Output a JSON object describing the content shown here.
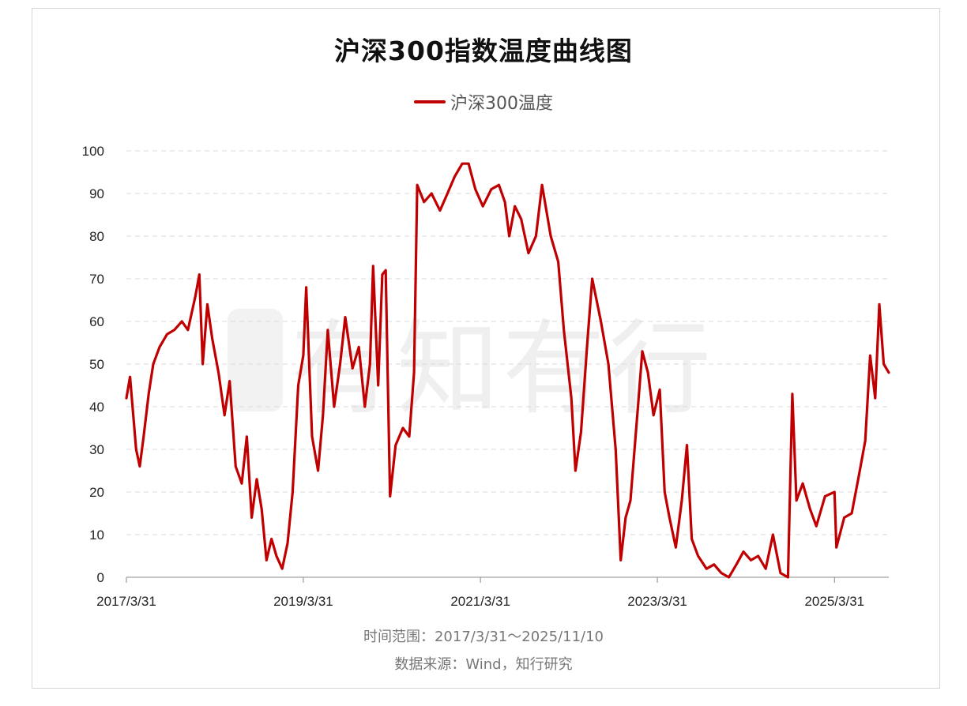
{
  "header": {
    "title": "沪深300指数温度曲线图"
  },
  "legend": {
    "label": "沪深300温度",
    "color": "#c00000"
  },
  "watermark": {
    "text": "有知有行"
  },
  "footer": {
    "time_range": "时间范围：2017/3/31～2025/11/10",
    "source": "数据来源：Wind，知行研究"
  },
  "chart_data": {
    "type": "line",
    "title": "沪深300指数温度曲线图",
    "xlabel": "",
    "ylabel": "",
    "x_start": "2017/3/31",
    "x_end": "2025/11/10",
    "ylim": [
      0,
      100
    ],
    "y_ticks": [
      0,
      10,
      20,
      30,
      40,
      50,
      60,
      70,
      80,
      90,
      100
    ],
    "x_tick_labels": [
      "2017/3/31",
      "2019/3/31",
      "2021/3/31",
      "2023/3/31",
      "2025/3/31"
    ],
    "grid": true,
    "legend_position": "top-center",
    "series": [
      {
        "name": "沪深300温度",
        "color": "#c00000",
        "points": [
          [
            "2017-03-31",
            42
          ],
          [
            "2017-04-15",
            47
          ],
          [
            "2017-05-10",
            30
          ],
          [
            "2017-05-25",
            26
          ],
          [
            "2017-06-10",
            33
          ],
          [
            "2017-07-01",
            43
          ],
          [
            "2017-07-20",
            50
          ],
          [
            "2017-08-15",
            54
          ],
          [
            "2017-09-15",
            57
          ],
          [
            "2017-10-15",
            58
          ],
          [
            "2017-11-15",
            60
          ],
          [
            "2017-12-10",
            58
          ],
          [
            "2018-01-10",
            66
          ],
          [
            "2018-01-26",
            71
          ],
          [
            "2018-02-09",
            50
          ],
          [
            "2018-02-28",
            64
          ],
          [
            "2018-03-20",
            56
          ],
          [
            "2018-04-15",
            48
          ],
          [
            "2018-05-10",
            38
          ],
          [
            "2018-05-31",
            46
          ],
          [
            "2018-06-25",
            26
          ],
          [
            "2018-07-20",
            22
          ],
          [
            "2018-08-10",
            33
          ],
          [
            "2018-08-30",
            14
          ],
          [
            "2018-09-20",
            23
          ],
          [
            "2018-10-10",
            16
          ],
          [
            "2018-10-30",
            4
          ],
          [
            "2018-11-20",
            9
          ],
          [
            "2018-12-10",
            5
          ],
          [
            "2019-01-03",
            2
          ],
          [
            "2019-01-25",
            8
          ],
          [
            "2019-02-15",
            20
          ],
          [
            "2019-03-10",
            45
          ],
          [
            "2019-03-31",
            52
          ],
          [
            "2019-04-12",
            68
          ],
          [
            "2019-05-06",
            33
          ],
          [
            "2019-05-31",
            25
          ],
          [
            "2019-06-20",
            38
          ],
          [
            "2019-07-10",
            58
          ],
          [
            "2019-08-05",
            40
          ],
          [
            "2019-08-30",
            50
          ],
          [
            "2019-09-20",
            61
          ],
          [
            "2019-10-20",
            49
          ],
          [
            "2019-11-15",
            54
          ],
          [
            "2019-12-10",
            40
          ],
          [
            "2019-12-31",
            50
          ],
          [
            "2020-01-13",
            73
          ],
          [
            "2020-02-03",
            45
          ],
          [
            "2020-02-20",
            71
          ],
          [
            "2020-03-05",
            72
          ],
          [
            "2020-03-23",
            19
          ],
          [
            "2020-04-15",
            31
          ],
          [
            "2020-05-15",
            35
          ],
          [
            "2020-06-10",
            33
          ],
          [
            "2020-06-30",
            48
          ],
          [
            "2020-07-13",
            92
          ],
          [
            "2020-08-10",
            88
          ],
          [
            "2020-09-10",
            90
          ],
          [
            "2020-10-15",
            86
          ],
          [
            "2020-11-15",
            90
          ],
          [
            "2020-12-15",
            94
          ],
          [
            "2021-01-15",
            97
          ],
          [
            "2021-02-10",
            97
          ],
          [
            "2021-03-10",
            91
          ],
          [
            "2021-04-10",
            87
          ],
          [
            "2021-05-15",
            91
          ],
          [
            "2021-06-15",
            92
          ],
          [
            "2021-07-10",
            88
          ],
          [
            "2021-07-28",
            80
          ],
          [
            "2021-08-20",
            87
          ],
          [
            "2021-09-15",
            84
          ],
          [
            "2021-10-15",
            76
          ],
          [
            "2021-11-15",
            80
          ],
          [
            "2021-12-10",
            92
          ],
          [
            "2022-01-15",
            80
          ],
          [
            "2022-02-15",
            74
          ],
          [
            "2022-03-10",
            58
          ],
          [
            "2022-04-10",
            42
          ],
          [
            "2022-04-27",
            25
          ],
          [
            "2022-05-20",
            34
          ],
          [
            "2022-06-15",
            55
          ],
          [
            "2022-07-05",
            70
          ],
          [
            "2022-08-10",
            60
          ],
          [
            "2022-09-10",
            50
          ],
          [
            "2022-10-10",
            30
          ],
          [
            "2022-10-31",
            4
          ],
          [
            "2022-11-20",
            14
          ],
          [
            "2022-12-10",
            18
          ],
          [
            "2023-01-10",
            40
          ],
          [
            "2023-01-28",
            53
          ],
          [
            "2023-02-20",
            48
          ],
          [
            "2023-03-15",
            38
          ],
          [
            "2023-04-10",
            44
          ],
          [
            "2023-04-30",
            20
          ],
          [
            "2023-05-20",
            14
          ],
          [
            "2023-06-15",
            7
          ],
          [
            "2023-07-10",
            18
          ],
          [
            "2023-07-31",
            31
          ],
          [
            "2023-08-20",
            9
          ],
          [
            "2023-09-15",
            5
          ],
          [
            "2023-10-20",
            2
          ],
          [
            "2023-11-20",
            3
          ],
          [
            "2023-12-20",
            1
          ],
          [
            "2024-01-20",
            0
          ],
          [
            "2024-02-20",
            3
          ],
          [
            "2024-03-20",
            6
          ],
          [
            "2024-04-20",
            4
          ],
          [
            "2024-05-20",
            5
          ],
          [
            "2024-06-20",
            2
          ],
          [
            "2024-07-20",
            10
          ],
          [
            "2024-08-20",
            1
          ],
          [
            "2024-09-20",
            0
          ],
          [
            "2024-10-08",
            43
          ],
          [
            "2024-10-25",
            18
          ],
          [
            "2024-11-20",
            22
          ],
          [
            "2024-12-20",
            16
          ],
          [
            "2025-01-15",
            12
          ],
          [
            "2025-02-20",
            19
          ],
          [
            "2025-03-31",
            20
          ],
          [
            "2025-04-08",
            7
          ],
          [
            "2025-05-10",
            14
          ],
          [
            "2025-06-10",
            15
          ],
          [
            "2025-07-10",
            24
          ],
          [
            "2025-08-05",
            32
          ],
          [
            "2025-08-25",
            52
          ],
          [
            "2025-09-15",
            42
          ],
          [
            "2025-10-02",
            64
          ],
          [
            "2025-10-20",
            50
          ],
          [
            "2025-11-10",
            48
          ]
        ]
      }
    ]
  }
}
